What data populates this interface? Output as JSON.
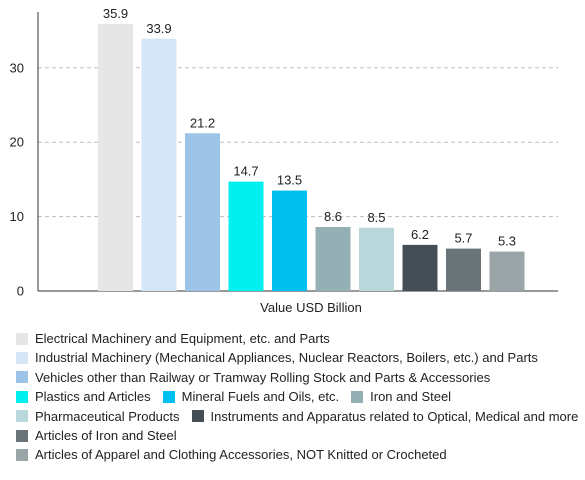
{
  "chart_data": {
    "type": "bar",
    "xlabel": "Value USD Billion",
    "ylim": [
      0,
      37.5
    ],
    "yticks": [
      0,
      10,
      20,
      30
    ],
    "grid": true,
    "legend_position": "bottom",
    "series": [
      {
        "name": "Electrical Machinery and Equipment, etc. and Parts",
        "value": 35.9,
        "label": "35.9",
        "color": "#e6e6e6"
      },
      {
        "name": "Industrial Machinery (Mechanical Appliances, Nuclear Reactors, Boilers, etc.) and Parts",
        "value": 33.9,
        "label": "33.9",
        "color": "#d6e6f7"
      },
      {
        "name": "Vehicles other than Railway or Tramway Rolling Stock and Parts & Accessories",
        "value": 21.2,
        "label": "21.2",
        "color": "#9dc3e6"
      },
      {
        "name": "Plastics and Articles",
        "value": 14.7,
        "label": "14.7",
        "color": "#00f0f0"
      },
      {
        "name": "Mineral Fuels and Oils, etc.",
        "value": 13.5,
        "label": "13.5",
        "color": "#00c0f0"
      },
      {
        "name": "Iron and Steel",
        "value": 8.6,
        "label": "8.6",
        "color": "#94b0b5"
      },
      {
        "name": "Pharmaceutical Products",
        "value": 8.5,
        "label": "8.5",
        "color": "#b8d8db"
      },
      {
        "name": "Instruments and Apparatus related to Optical, Medical and more",
        "value": 6.2,
        "label": "6.2",
        "color": "#434f55"
      },
      {
        "name": "Articles of Iron and Steel",
        "value": 5.7,
        "label": "5.7",
        "color": "#687478"
      },
      {
        "name": "Articles of Apparel and Clothing Accessories, NOT Knitted or Crocheted",
        "value": 5.3,
        "label": "5.3",
        "color": "#9aa5a8"
      }
    ]
  }
}
